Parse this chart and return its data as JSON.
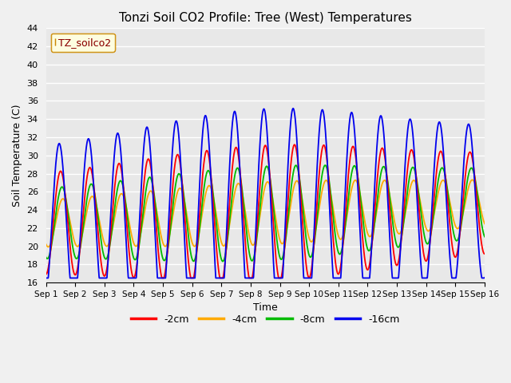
{
  "title": "Tonzi Soil CO2 Profile: Tree (West) Temperatures",
  "xlabel": "Time",
  "ylabel": "Soil Temperature (C)",
  "ylim": [
    16,
    44
  ],
  "xlim": [
    0,
    15
  ],
  "legend_label": "TZ_soilco2",
  "line_labels": [
    "-2cm",
    "-4cm",
    "-8cm",
    "-16cm"
  ],
  "line_colors": [
    "#ff0000",
    "#ffaa00",
    "#00bb00",
    "#0000ee"
  ],
  "xtick_labels": [
    "Sep 1",
    "Sep 2",
    "Sep 3",
    "Sep 4",
    "Sep 5",
    "Sep 6",
    "Sep 7",
    "Sep 8",
    "Sep 9",
    "Sep 10",
    "Sep 11",
    "Sep 12",
    "Sep 13",
    "Sep 14",
    "Sep 15",
    "Sep 16"
  ],
  "ytick_values": [
    16,
    18,
    20,
    22,
    24,
    26,
    28,
    30,
    32,
    34,
    36,
    38,
    40,
    42,
    44
  ],
  "plot_bg_color": "#e8e8e8",
  "fig_bg_color": "#f0f0f0",
  "grid_color": "#ffffff",
  "n_points": 2000
}
